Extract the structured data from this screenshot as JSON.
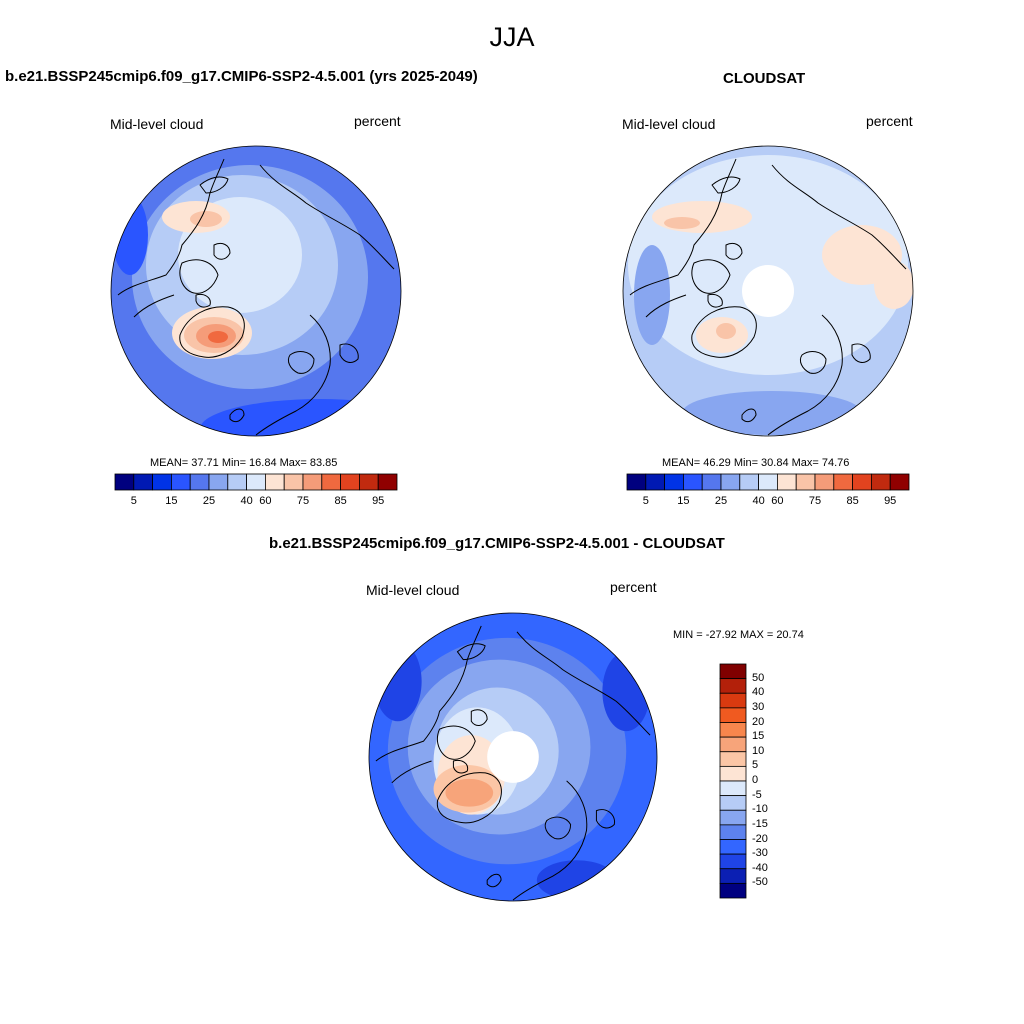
{
  "figure": {
    "title": "JJA"
  },
  "panels": [
    {
      "title": "b.e21.BSSP245cmip6.f09_g17.CMIP6-SSP2-4.5.001 (yrs 2025-2049)",
      "left_label": "Mid-level cloud",
      "right_label": "percent",
      "stats": {
        "mean": "37.71",
        "min": "16.84",
        "max": "83.85"
      },
      "stats_text": "MEAN=  37.71  Min=  16.84  Max=  83.85",
      "missing_pole": false
    },
    {
      "title": "CLOUDSAT",
      "left_label": "Mid-level cloud",
      "right_label": "percent",
      "stats": {
        "mean": "46.29",
        "min": "30.84",
        "max": "74.76"
      },
      "stats_text": "MEAN=  46.29  Min=  30.84  Max=  74.76",
      "missing_pole": true
    },
    {
      "title": "b.e21.BSSP245cmip6.f09_g17.CMIP6-SSP2-4.5.001 - CLOUDSAT",
      "left_label": "Mid-level cloud",
      "right_label": "percent",
      "stats": {
        "min": "-27.92",
        "max": "20.74"
      },
      "stats_text": "MIN = -27.92 MAX =  20.74",
      "missing_pole": true
    }
  ],
  "colorbars": {
    "abs": {
      "colors": [
        "#00007f",
        "#0019b3",
        "#0033e6",
        "#2a55ff",
        "#5577ee",
        "#88a6f0",
        "#b6ccf6",
        "#dce9fb",
        "#fde4d4",
        "#f9c4a8",
        "#f59c79",
        "#f0693f",
        "#e2431f",
        "#c12a0f",
        "#900000"
      ],
      "tick_labels": [
        "5",
        "15",
        "25",
        "40",
        "60",
        "75",
        "85",
        "95"
      ]
    },
    "diff": {
      "colors": [
        "#800000",
        "#b3200a",
        "#d93a10",
        "#f05a20",
        "#f7864d",
        "#f7a47a",
        "#fbc6a6",
        "#fde4d4",
        "#dce9fb",
        "#b6ccf6",
        "#88a6f0",
        "#5d82ee",
        "#3366ff",
        "#1f44e6",
        "#0b1fb3",
        "#000080"
      ],
      "tick_labels": [
        "50",
        "40",
        "30",
        "20",
        "15",
        "10",
        "5",
        "0",
        "-5",
        "-10",
        "-15",
        "-20",
        "-30",
        "-40",
        "-50"
      ]
    }
  }
}
